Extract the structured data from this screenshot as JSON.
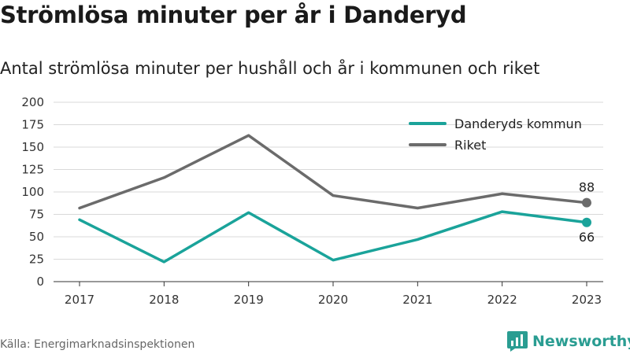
{
  "header": {
    "title": "Strömlösa minuter per år i Danderyd",
    "subtitle": "Antal strömlösa minuter per hushåll och år i kommunen och riket"
  },
  "footer": {
    "source": "Källa: Energimarknadsinspektionen",
    "brand": "Newsworthy",
    "brand_icon": "bar-chart-logo-icon"
  },
  "colors": {
    "danderyd": "#1aa39a",
    "riket": "#6b6b6b",
    "grid": "#d9d9d9",
    "brand": "#2a9d92"
  },
  "chart_data": {
    "type": "line",
    "categories": [
      "2017",
      "2018",
      "2019",
      "2020",
      "2021",
      "2022",
      "2023"
    ],
    "ylim": [
      0,
      200
    ],
    "yticks": [
      0,
      25,
      50,
      75,
      100,
      125,
      150,
      175,
      200
    ],
    "grid": true,
    "legend_position": "top-right",
    "series": [
      {
        "name": "Danderyds kommun",
        "values": [
          69,
          22,
          77,
          24,
          47,
          78,
          66
        ],
        "end_label": "66"
      },
      {
        "name": "Riket",
        "values": [
          82,
          116,
          163,
          96,
          82,
          98,
          88
        ],
        "end_label": "88"
      }
    ]
  }
}
